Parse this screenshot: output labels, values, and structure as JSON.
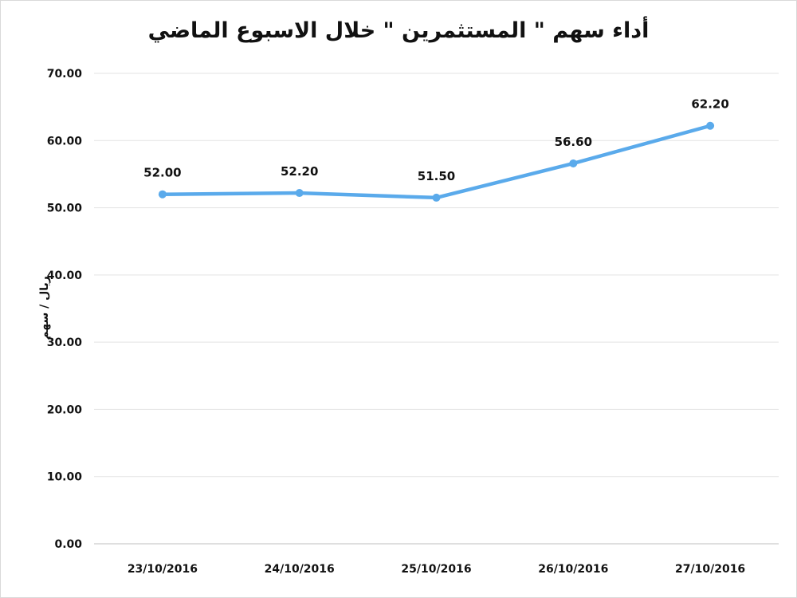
{
  "chart_data": {
    "type": "line",
    "title": "أداء سهم \" المستثمرين \" خلال الاسبوع الماضي",
    "xlabel": "",
    "ylabel": "ريال / سهم",
    "categories": [
      "23/10/2016",
      "24/10/2016",
      "25/10/2016",
      "26/10/2016",
      "27/10/2016"
    ],
    "series": [
      {
        "values": [
          52.0,
          52.2,
          51.5,
          56.6,
          62.2
        ],
        "labels": [
          "52.00",
          "52.20",
          "51.50",
          "56.60",
          "62.20"
        ]
      }
    ],
    "ylim": [
      0,
      70
    ],
    "yticks": [
      "0.00",
      "10.00",
      "20.00",
      "30.00",
      "40.00",
      "50.00",
      "60.00",
      "70.00"
    ],
    "grid": true,
    "legend": "none",
    "line_color": "#5aaaeb"
  }
}
